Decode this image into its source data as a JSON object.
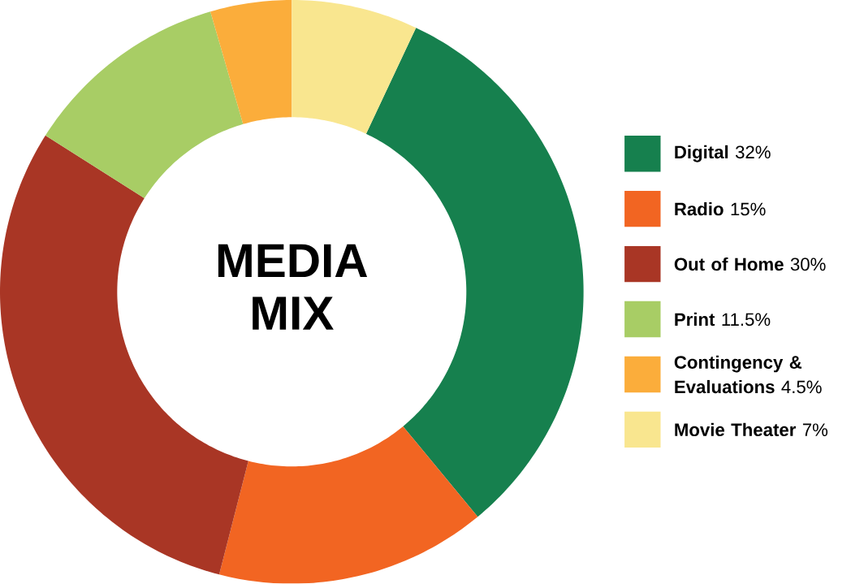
{
  "chart_data": {
    "type": "donut",
    "title": "MEDIA MIX",
    "categories": [
      "Digital",
      "Radio",
      "Out of Home",
      "Print",
      "Contingency & Evaluations",
      "Movie Theater"
    ],
    "values": [
      32,
      15,
      30,
      11.5,
      4.5,
      7
    ],
    "value_labels": [
      "32%",
      "15%",
      "30%",
      "11.5%",
      "4.5%",
      "7%"
    ],
    "colors": [
      "#16804e",
      "#f26522",
      "#a93625",
      "#a8cd65",
      "#fbad3b",
      "#f9e68f"
    ],
    "legend": "right"
  }
}
